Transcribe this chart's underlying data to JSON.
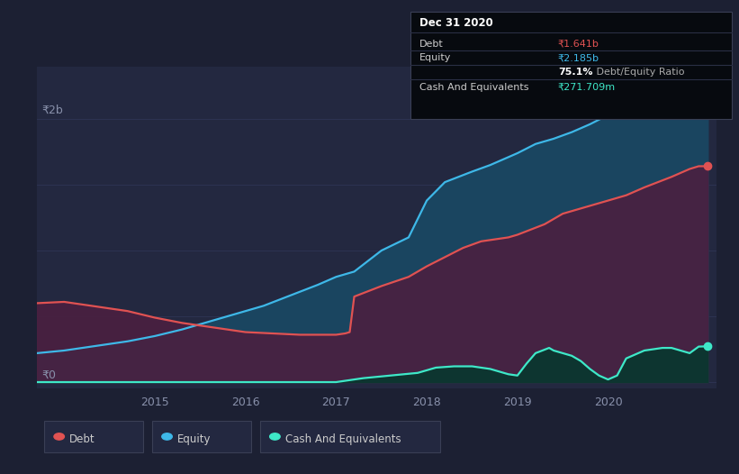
{
  "bg_color": "#1c2033",
  "plot_bg_color": "#232840",
  "grid_color": "#2d3352",
  "title_box": {
    "title": "Dec 31 2020",
    "rows": [
      {
        "label": "Debt",
        "value": "₹1.641b",
        "value_color": "#e05252"
      },
      {
        "label": "Equity",
        "value": "₹2.185b",
        "value_color": "#3eb8e8"
      },
      {
        "label": "",
        "value": "75.1% Debt/Equity Ratio",
        "value_color": "#ffffff"
      },
      {
        "label": "Cash And Equivalents",
        "value": "₹271.709m",
        "value_color": "#3ee8c8"
      }
    ],
    "bg_color": "#070a0f",
    "border_color": "#3a3f55"
  },
  "ylabel_2b": "₹2b",
  "ylabel_0": "₹0",
  "xlim": [
    2013.7,
    2021.2
  ],
  "ylim": [
    -0.05,
    2.4
  ],
  "equity_x": [
    2013.7,
    2014.0,
    2014.3,
    2014.7,
    2015.0,
    2015.3,
    2015.6,
    2015.9,
    2016.2,
    2016.5,
    2016.8,
    2017.0,
    2017.1,
    2017.15,
    2017.2,
    2017.5,
    2017.8,
    2018.0,
    2018.2,
    2018.5,
    2018.7,
    2019.0,
    2019.2,
    2019.4,
    2019.6,
    2019.8,
    2020.0,
    2020.2,
    2020.5,
    2020.8,
    2021.0,
    2021.1
  ],
  "equity_y": [
    0.22,
    0.24,
    0.27,
    0.31,
    0.35,
    0.4,
    0.46,
    0.52,
    0.58,
    0.66,
    0.74,
    0.8,
    0.82,
    0.83,
    0.84,
    1.0,
    1.1,
    1.38,
    1.52,
    1.6,
    1.65,
    1.74,
    1.81,
    1.85,
    1.9,
    1.96,
    2.03,
    2.07,
    2.11,
    2.15,
    2.18,
    2.185
  ],
  "debt_x": [
    2013.7,
    2014.0,
    2014.3,
    2014.7,
    2015.0,
    2015.3,
    2015.6,
    2015.9,
    2016.0,
    2016.3,
    2016.6,
    2016.9,
    2017.0,
    2017.1,
    2017.15,
    2017.2,
    2017.5,
    2017.8,
    2018.0,
    2018.2,
    2018.4,
    2018.6,
    2018.9,
    2019.0,
    2019.3,
    2019.5,
    2019.7,
    2019.9,
    2020.0,
    2020.2,
    2020.4,
    2020.7,
    2020.9,
    2021.0,
    2021.1
  ],
  "debt_y": [
    0.6,
    0.61,
    0.58,
    0.54,
    0.49,
    0.45,
    0.42,
    0.39,
    0.38,
    0.37,
    0.36,
    0.36,
    0.36,
    0.37,
    0.38,
    0.65,
    0.73,
    0.8,
    0.88,
    0.95,
    1.02,
    1.07,
    1.1,
    1.12,
    1.2,
    1.28,
    1.32,
    1.36,
    1.38,
    1.42,
    1.48,
    1.56,
    1.62,
    1.641,
    1.641
  ],
  "cash_x": [
    2013.7,
    2014.0,
    2015.0,
    2016.0,
    2016.9,
    2017.0,
    2017.1,
    2017.3,
    2017.6,
    2017.9,
    2018.0,
    2018.1,
    2018.3,
    2018.5,
    2018.6,
    2018.7,
    2018.8,
    2018.9,
    2019.0,
    2019.1,
    2019.2,
    2019.35,
    2019.4,
    2019.5,
    2019.6,
    2019.7,
    2019.8,
    2019.9,
    2020.0,
    2020.1,
    2020.2,
    2020.4,
    2020.6,
    2020.7,
    2020.8,
    2020.9,
    2021.0,
    2021.1
  ],
  "cash_y": [
    0.0,
    0.0,
    0.0,
    0.0,
    0.0,
    0.0,
    0.01,
    0.03,
    0.05,
    0.07,
    0.09,
    0.11,
    0.12,
    0.12,
    0.11,
    0.1,
    0.08,
    0.06,
    0.05,
    0.14,
    0.22,
    0.26,
    0.24,
    0.22,
    0.2,
    0.16,
    0.1,
    0.05,
    0.02,
    0.05,
    0.18,
    0.24,
    0.26,
    0.26,
    0.24,
    0.22,
    0.27,
    0.272
  ],
  "equity_color": "#3eb8e8",
  "equity_fill": "#1a4560",
  "debt_color": "#e05252",
  "debt_fill_over_eq": "#4a2040",
  "cash_color": "#3ee8c8",
  "cash_fill": "#0d3530",
  "legend_items": [
    {
      "label": "Debt",
      "color": "#e05252"
    },
    {
      "label": "Equity",
      "color": "#3eb8e8"
    },
    {
      "label": "Cash And Equivalents",
      "color": "#3ee8c8"
    }
  ],
  "legend_bg": "#232840",
  "legend_border": "#3a3f55"
}
